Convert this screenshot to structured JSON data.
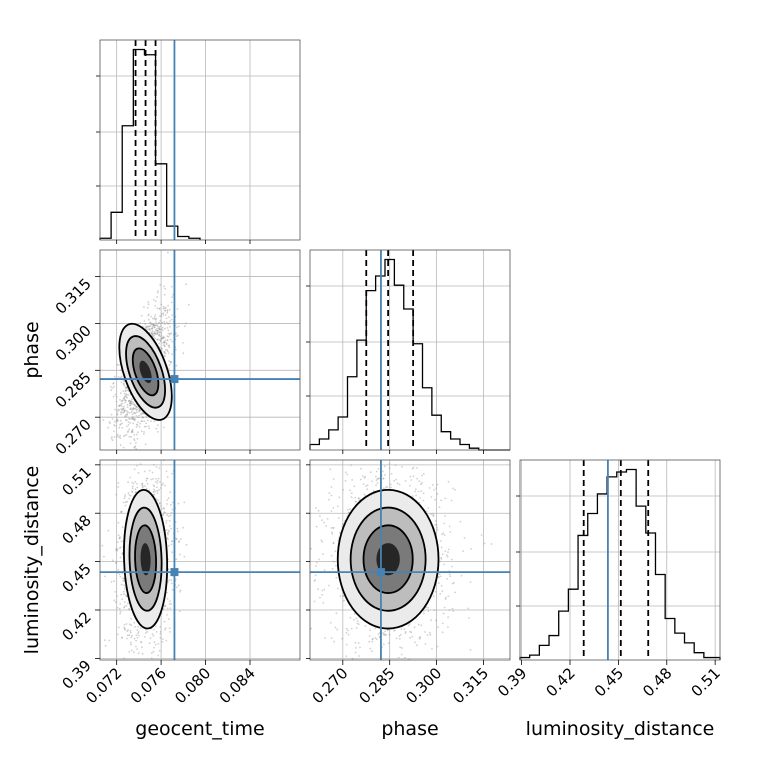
{
  "chart_data": {
    "type": "corner",
    "parameters": [
      {
        "name": "geocent_time",
        "label": "geocent_time",
        "range": [
          0.0705,
          0.0885
        ],
        "ticks": [
          "0.072",
          "0.076",
          "0.080",
          "0.084"
        ],
        "truth": 0.0772,
        "quantiles": [
          0.0737,
          0.0746,
          0.0755
        ]
      },
      {
        "name": "phase",
        "label": "phase",
        "range": [
          0.2595,
          0.3235
        ],
        "ticks": [
          "0.270",
          "0.285",
          "0.300",
          "0.315"
        ],
        "truth": 0.2822,
        "quantiles": [
          0.2775,
          0.2845,
          0.2925
        ]
      },
      {
        "name": "luminosity_distance",
        "label": "luminosity_distance",
        "range": [
          0.389,
          0.513
        ],
        "ticks": [
          "0.39",
          "0.42",
          "0.45",
          "0.48",
          "0.51"
        ],
        "truth": 0.4435,
        "quantiles": [
          0.4285,
          0.4515,
          0.4685
        ]
      }
    ],
    "histograms": [
      {
        "param": "geocent_time",
        "bin_edges": [
          0.0705,
          0.0715,
          0.0725,
          0.0735,
          0.0745,
          0.0755,
          0.0765,
          0.0775,
          0.0785,
          0.0795
        ],
        "counts": [
          1,
          16,
          66,
          110,
          107,
          44,
          8,
          2,
          1
        ]
      },
      {
        "param": "phase",
        "bin_edges": [
          0.2595,
          0.2625,
          0.2655,
          0.2685,
          0.2715,
          0.2745,
          0.2775,
          0.2805,
          0.2835,
          0.2865,
          0.2895,
          0.2925,
          0.2955,
          0.2985,
          0.3015,
          0.3045,
          0.3075,
          0.3105,
          0.3135,
          0.3165,
          0.3195,
          0.3235
        ],
        "counts": [
          3,
          6,
          11,
          18,
          40,
          60,
          87,
          95,
          104,
          90,
          77,
          58,
          34,
          19,
          10,
          6,
          3,
          1,
          0,
          0,
          0
        ]
      },
      {
        "param": "luminosity_distance",
        "bin_edges": [
          0.389,
          0.395,
          0.401,
          0.407,
          0.413,
          0.419,
          0.425,
          0.431,
          0.437,
          0.443,
          0.449,
          0.455,
          0.461,
          0.467,
          0.473,
          0.479,
          0.485,
          0.491,
          0.497,
          0.503,
          0.509,
          0.513
        ],
        "counts": [
          1,
          2,
          6,
          10,
          20,
          29,
          51,
          60,
          68,
          75,
          77,
          78,
          63,
          52,
          35,
          17,
          11,
          7,
          3,
          1,
          1
        ]
      }
    ],
    "contour_fill_levels": [
      0.12,
      0.39,
      0.68,
      0.86
    ],
    "grid": true,
    "truth_color": "#4682b4",
    "contour_color": "#000000",
    "points_color": "#9a9a9a"
  }
}
